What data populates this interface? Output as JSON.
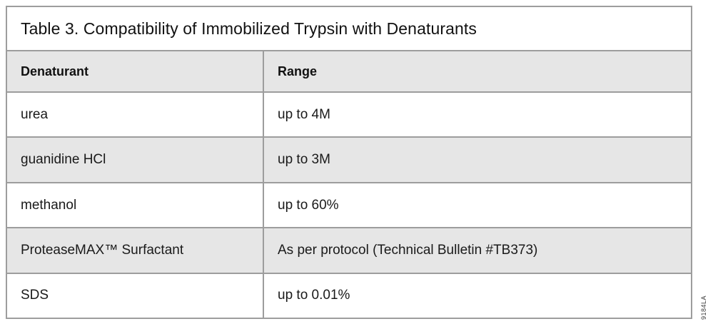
{
  "title": "Table 3. Compatibility of Immobilized Trypsin with Denaturants",
  "table": {
    "columns": [
      "Denaturant",
      "Range"
    ],
    "rows": [
      {
        "denaturant": "urea",
        "range": "up to 4M"
      },
      {
        "denaturant": "guanidine HCl",
        "range": "up to 3M"
      },
      {
        "denaturant": "methanol",
        "range": "up to 60%"
      },
      {
        "denaturant": "ProteaseMAX™ Surfactant",
        "range": "As per protocol (Technical Bulletin #TB373)"
      },
      {
        "denaturant": "SDS",
        "range": "up to 0.01%"
      }
    ]
  },
  "watermark": "9184LA",
  "colors": {
    "row_shade_bg": "#e6e6e6",
    "row_plain_bg": "#ffffff",
    "border": "#9d9d9d",
    "text": "#1a1a1a"
  }
}
